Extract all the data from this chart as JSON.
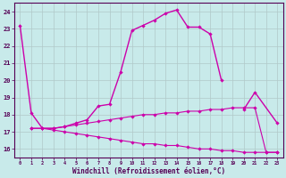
{
  "xlabel": "Windchill (Refroidissement éolien,°C)",
  "xlim": [
    -0.5,
    23.5
  ],
  "ylim": [
    15.5,
    24.5
  ],
  "yticks": [
    16,
    17,
    18,
    19,
    20,
    21,
    22,
    23,
    24
  ],
  "xticks": [
    0,
    1,
    2,
    3,
    4,
    5,
    6,
    7,
    8,
    9,
    10,
    11,
    12,
    13,
    14,
    15,
    16,
    17,
    18,
    19,
    20,
    21,
    22,
    23
  ],
  "bg_color": "#c8eaea",
  "grid_color": "#b0c8c8",
  "lines": [
    {
      "x": [
        0,
        1,
        2,
        3,
        4,
        5,
        6,
        7,
        8,
        9,
        10,
        11,
        12,
        13,
        14,
        15,
        16,
        17,
        18
      ],
      "y": [
        23.2,
        18.1,
        17.2,
        17.2,
        17.3,
        17.5,
        17.7,
        18.5,
        18.6,
        20.5,
        22.9,
        23.2,
        23.5,
        23.9,
        24.1,
        23.1,
        23.1,
        22.7,
        20.0
      ],
      "color": "#cc00aa",
      "lw": 1.0
    },
    {
      "x": [
        20,
        21,
        23
      ],
      "y": [
        18.3,
        19.3,
        17.5
      ],
      "color": "#cc00aa",
      "lw": 1.0
    },
    {
      "x": [
        1,
        2,
        3,
        4,
        5,
        6,
        7,
        8,
        9,
        10,
        11,
        12,
        13,
        14,
        15,
        16,
        17,
        18,
        19,
        20,
        21,
        22,
        23
      ],
      "y": [
        17.2,
        17.2,
        17.2,
        17.3,
        17.4,
        17.5,
        17.6,
        17.7,
        17.8,
        17.9,
        18.0,
        18.0,
        18.1,
        18.1,
        18.2,
        18.2,
        18.3,
        18.3,
        18.4,
        18.4,
        18.4,
        15.8,
        15.8
      ],
      "color": "#cc00aa",
      "lw": 0.8
    },
    {
      "x": [
        1,
        2,
        3,
        4,
        5,
        6,
        7,
        8,
        9,
        10,
        11,
        12,
        13,
        14,
        15,
        16,
        17,
        18,
        19,
        20,
        21,
        22,
        23
      ],
      "y": [
        17.2,
        17.2,
        17.1,
        17.0,
        16.9,
        16.8,
        16.7,
        16.6,
        16.5,
        16.4,
        16.3,
        16.3,
        16.2,
        16.2,
        16.1,
        16.0,
        16.0,
        15.9,
        15.9,
        15.8,
        15.8,
        15.8,
        15.8
      ],
      "color": "#cc00aa",
      "lw": 0.8
    }
  ]
}
